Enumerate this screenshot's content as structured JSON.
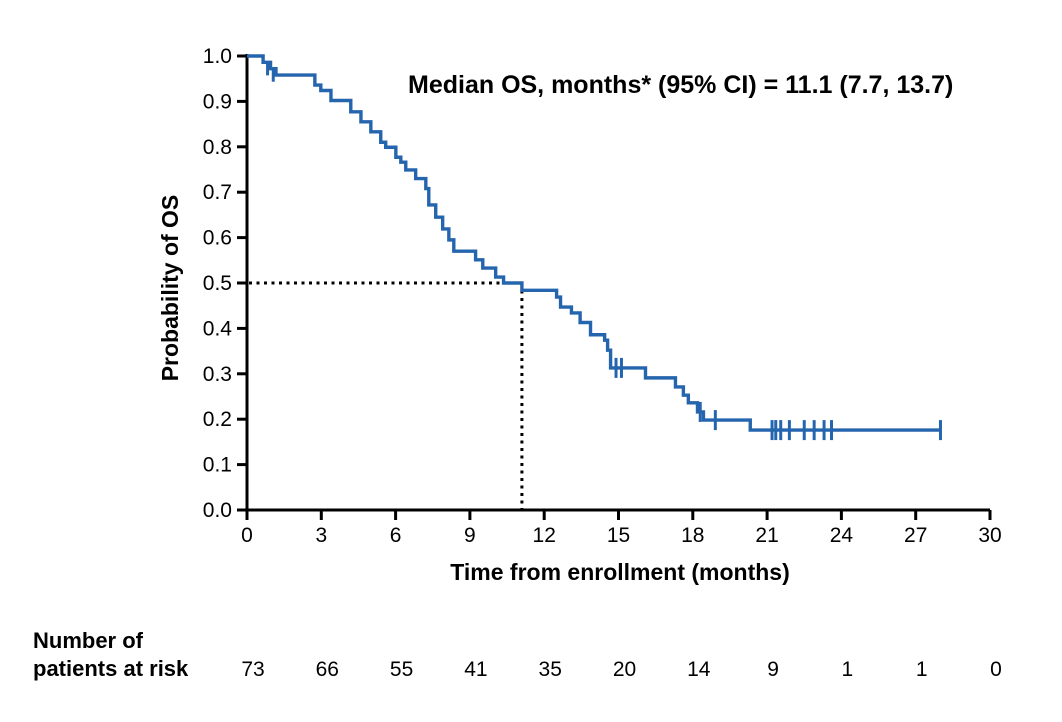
{
  "page": {
    "background": "#ffffff"
  },
  "chart_data": {
    "type": "line",
    "subtype": "kaplan_meier_step",
    "title": "",
    "annotation": "Median OS, months* (95% CI) = 11.1 (7.7, 13.7)",
    "xlabel": "Time from enrollment (months)",
    "ylabel": "Probability of OS",
    "xlim": [
      0,
      30
    ],
    "ylim": [
      0.0,
      1.0
    ],
    "xticks": [
      0,
      3,
      6,
      9,
      12,
      15,
      18,
      21,
      24,
      27,
      30
    ],
    "ytick_labels": [
      "0.0",
      "0.1",
      "0.2",
      "0.3",
      "0.4",
      "0.5",
      "0.6",
      "0.7",
      "0.8",
      "0.9",
      "1.0"
    ],
    "grid": false,
    "legend": "none",
    "curve_color": "#2565ae",
    "axis_color": "#000000",
    "median_reference": {
      "time_months": 11.1,
      "probability": 0.5,
      "style": "dotted"
    },
    "series": [
      {
        "name": "OS",
        "steps": [
          [
            0.0,
            1.0
          ],
          [
            0.65,
            0.986
          ],
          [
            0.95,
            0.972
          ],
          [
            1.17,
            0.958
          ],
          [
            2.74,
            0.936
          ],
          [
            2.98,
            0.924
          ],
          [
            3.39,
            0.902
          ],
          [
            4.19,
            0.877
          ],
          [
            4.6,
            0.855
          ],
          [
            5.0,
            0.833
          ],
          [
            5.4,
            0.81
          ],
          [
            5.6,
            0.799
          ],
          [
            6.01,
            0.777
          ],
          [
            6.21,
            0.766
          ],
          [
            6.41,
            0.749
          ],
          [
            6.81,
            0.73
          ],
          [
            7.22,
            0.708
          ],
          [
            7.34,
            0.672
          ],
          [
            7.62,
            0.645
          ],
          [
            7.9,
            0.619
          ],
          [
            8.15,
            0.595
          ],
          [
            8.35,
            0.57
          ],
          [
            9.23,
            0.551
          ],
          [
            9.52,
            0.533
          ],
          [
            10.04,
            0.513
          ],
          [
            10.36,
            0.5
          ],
          [
            11.1,
            0.484
          ],
          [
            12.5,
            0.469
          ],
          [
            12.66,
            0.447
          ],
          [
            13.1,
            0.434
          ],
          [
            13.45,
            0.413
          ],
          [
            13.87,
            0.386
          ],
          [
            14.44,
            0.374
          ],
          [
            14.56,
            0.352
          ],
          [
            14.68,
            0.313
          ],
          [
            16.09,
            0.291
          ],
          [
            17.3,
            0.271
          ],
          [
            17.62,
            0.253
          ],
          [
            17.82,
            0.236
          ],
          [
            18.19,
            0.216
          ],
          [
            18.43,
            0.198
          ],
          [
            20.32,
            0.176
          ]
        ],
        "censor_marks": [
          [
            0.83,
            0.986
          ],
          [
            1.06,
            0.972
          ],
          [
            14.9,
            0.313
          ],
          [
            15.12,
            0.313
          ],
          [
            18.3,
            0.216
          ],
          [
            18.91,
            0.198
          ],
          [
            21.2,
            0.176
          ],
          [
            21.35,
            0.176
          ],
          [
            21.55,
            0.176
          ],
          [
            21.9,
            0.176
          ],
          [
            22.5,
            0.176
          ],
          [
            22.9,
            0.176
          ],
          [
            23.3,
            0.176
          ],
          [
            23.6,
            0.176
          ],
          [
            28.0,
            0.176
          ]
        ],
        "end_time_months": 28.0
      }
    ],
    "at_risk_table": {
      "label": [
        "Number of",
        "patients at risk"
      ],
      "times": [
        0,
        3,
        6,
        9,
        12,
        15,
        18,
        21,
        24,
        27,
        30
      ],
      "values": [
        73,
        66,
        55,
        41,
        35,
        20,
        14,
        9,
        1,
        1,
        0
      ]
    }
  }
}
